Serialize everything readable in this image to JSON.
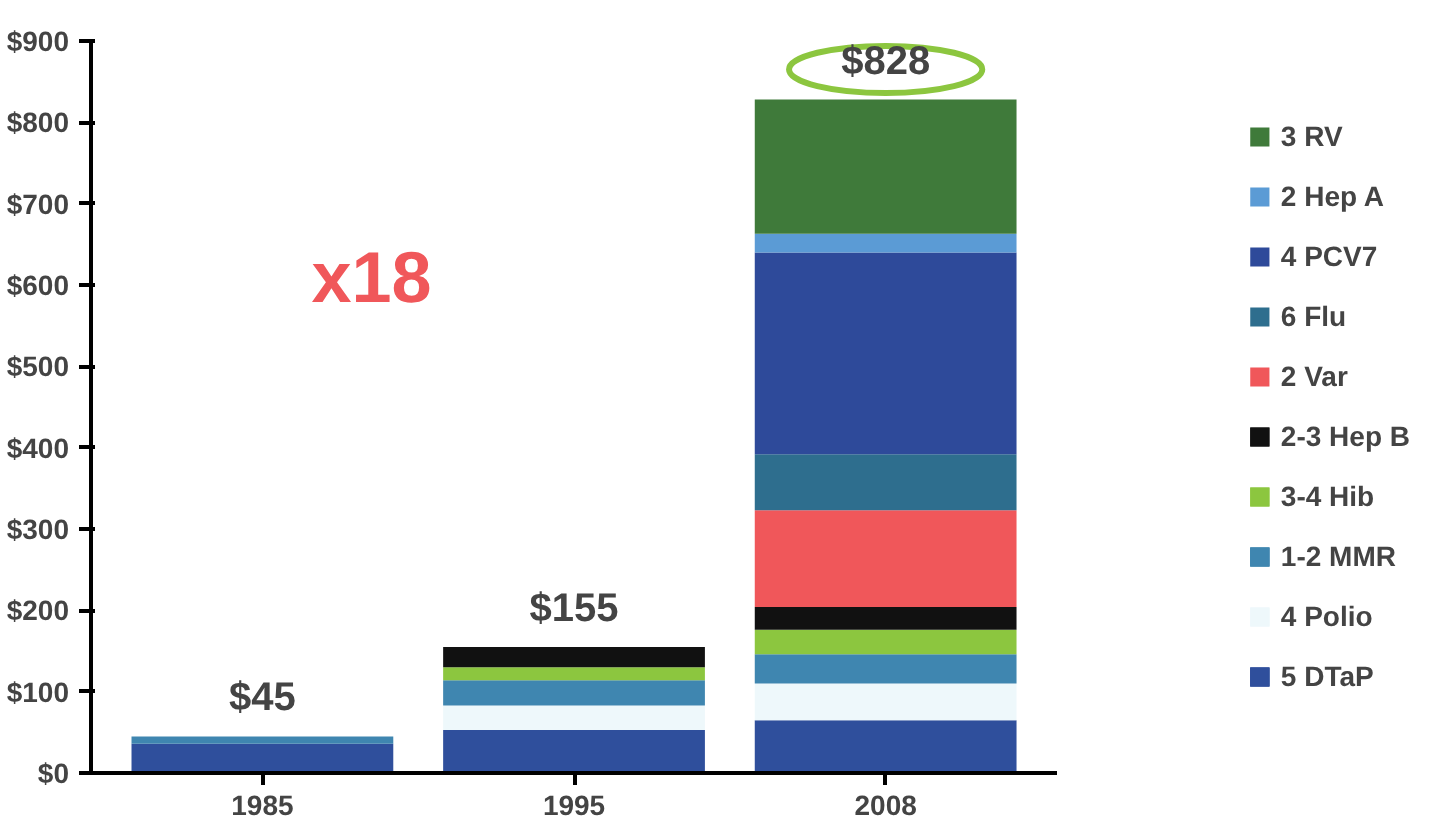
{
  "chart_data": {
    "type": "bar",
    "stacked": true,
    "categories": [
      "1985",
      "1995",
      "2008"
    ],
    "series": [
      {
        "name": "5 DTaP",
        "color": "#2f4f9c",
        "values": [
          36,
          53,
          65
        ]
      },
      {
        "name": "4 Polio",
        "color": "#eef8fb",
        "values": [
          null,
          30,
          45
        ]
      },
      {
        "name": "1-2 MMR",
        "color": "#3f86b0",
        "values": [
          9,
          31,
          36
        ]
      },
      {
        "name": "3-4 Hib",
        "color": "#8cc63f",
        "values": [
          null,
          16,
          30
        ]
      },
      {
        "name": "2-3 Hep B",
        "color": "#111111",
        "values": [
          null,
          25,
          28
        ]
      },
      {
        "name": "2 Var",
        "color": "#f0575a",
        "values": [
          null,
          null,
          119
        ]
      },
      {
        "name": "6 Flu",
        "color": "#2e6e8e",
        "values": [
          null,
          null,
          69
        ]
      },
      {
        "name": "4 PCV7",
        "color": "#2e4a9a",
        "values": [
          null,
          null,
          248
        ]
      },
      {
        "name": "2 Hep A",
        "color": "#5b9bd5",
        "values": [
          null,
          null,
          23
        ]
      },
      {
        "name": "3 RV",
        "color": "#3f7a3a",
        "values": [
          null,
          null,
          165
        ]
      }
    ],
    "totals": [
      "$45",
      "$155",
      "$828"
    ],
    "annotations": [
      "x18"
    ],
    "ylim": [
      0,
      900
    ],
    "yticks": [
      {
        "value": 0,
        "label": "$0"
      },
      {
        "value": 100,
        "label": "$100"
      },
      {
        "value": 200,
        "label": "$200"
      },
      {
        "value": 300,
        "label": "$300"
      },
      {
        "value": 400,
        "label": "$400"
      },
      {
        "value": 500,
        "label": "$500"
      },
      {
        "value": 600,
        "label": "$600"
      },
      {
        "value": 700,
        "label": "$700"
      },
      {
        "value": 800,
        "label": "$800"
      },
      {
        "value": 900,
        "label": "$900"
      }
    ],
    "grid": false,
    "legend": "right"
  }
}
